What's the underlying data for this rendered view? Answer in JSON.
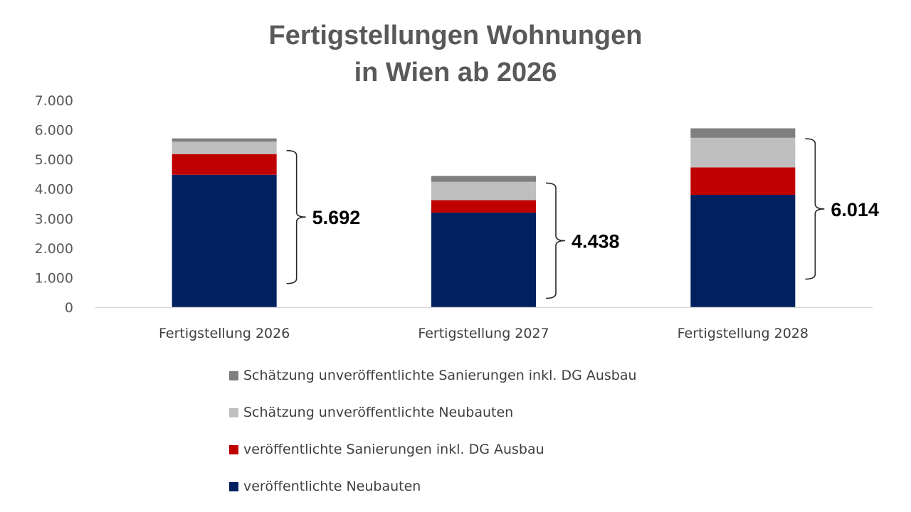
{
  "chart_data": {
    "type": "bar",
    "stacked": true,
    "title": "Fertigstellungen Wohnungen in Wien ab 2026",
    "title_lines": [
      "Fertigstellungen Wohnungen",
      "in Wien ab 2026"
    ],
    "categories": [
      "Fertigstellung 2026",
      "Fertigstellung 2027",
      "Fertigstellung 2028"
    ],
    "ylim": [
      0,
      7000
    ],
    "yticks": [
      0,
      1000,
      2000,
      3000,
      4000,
      5000,
      6000,
      7000
    ],
    "ytick_labels": [
      "0",
      "1.000",
      "2.000",
      "3.000",
      "4.000",
      "5.000",
      "6.000",
      "7.000"
    ],
    "grid": false,
    "legend_position": "bottom",
    "series": [
      {
        "name": "veröffentlichte Neubauten",
        "color": "#002060",
        "values": [
          4480,
          3200,
          3800
        ]
      },
      {
        "name": "veröffentlichte Sanierungen inkl. DG Ausbau",
        "color": "#c00000",
        "values": [
          700,
          420,
          930
        ]
      },
      {
        "name": "Schätzung unveröffentlichte Neubauten",
        "color": "#bfbfbf",
        "values": [
          420,
          620,
          1000
        ]
      },
      {
        "name": "Schätzung unveröffentlichte Sanierungen inkl. DG Ausbau",
        "color": "#7f7f7f",
        "values": [
          110,
          200,
          320
        ]
      }
    ],
    "legend_order": [
      3,
      2,
      1,
      0
    ],
    "annotations": [
      {
        "label": "5.692",
        "category_index": 0,
        "from": 800,
        "to": 5300
      },
      {
        "label": "4.438",
        "category_index": 1,
        "from": 300,
        "to": 4200
      },
      {
        "label": "6.014",
        "category_index": 2,
        "from": 950,
        "to": 5700
      }
    ]
  }
}
